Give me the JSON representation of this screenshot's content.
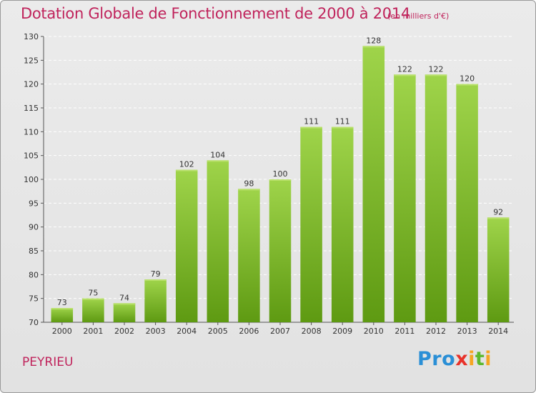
{
  "header": {
    "title": "Dotation Globale de Fonctionnement de 2000 à 2014",
    "subtitle": "(en milliers d'€)"
  },
  "commune": "PEYRIEU",
  "logo": {
    "text": "Proxiti",
    "letters": [
      {
        "char": "P",
        "color": "#2a8fd6"
      },
      {
        "char": "r",
        "color": "#2a8fd6"
      },
      {
        "char": "o",
        "color": "#2a8fd6"
      },
      {
        "char": "x",
        "color": "#e8322a"
      },
      {
        "char": "i",
        "color": "#f5a623"
      },
      {
        "char": "t",
        "color": "#5cb82d"
      },
      {
        "char": "i",
        "color": "#f5a623"
      }
    ]
  },
  "chart_data": {
    "type": "bar",
    "title": "Dotation Globale de Fonctionnement de 2000 à 2014",
    "subtitle": "(en milliers d'€)",
    "categories": [
      "2000",
      "2001",
      "2002",
      "2003",
      "2004",
      "2005",
      "2006",
      "2007",
      "2008",
      "2009",
      "2010",
      "2011",
      "2012",
      "2013",
      "2014"
    ],
    "values": [
      73,
      75,
      74,
      79,
      102,
      104,
      98,
      100,
      111,
      111,
      128,
      122,
      122,
      120,
      92
    ],
    "ylim": [
      70,
      130
    ],
    "yticks": [
      70,
      75,
      80,
      85,
      90,
      95,
      100,
      105,
      110,
      115,
      120,
      125,
      130
    ],
    "grid": true,
    "bar_color": "#7cbf2e",
    "bar_color_light": "#9fd44a",
    "bar_color_dark": "#5e9a12"
  }
}
